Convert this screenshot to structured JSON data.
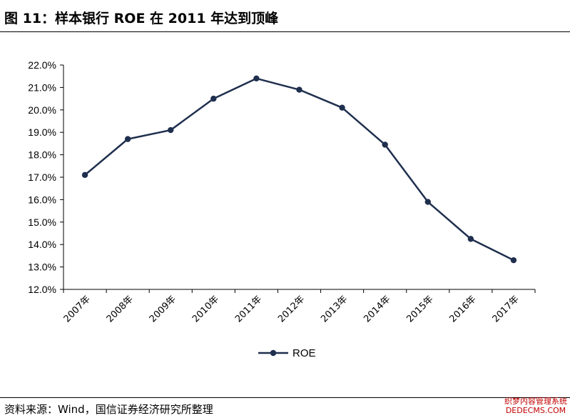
{
  "title": "图 11：样本银行 ROE 在 2011 年达到顶峰",
  "source": "资料来源：Wind，国信证券经济研究所整理",
  "watermark": [
    "织梦内容管理系统",
    "DEDECMS.COM"
  ],
  "colors": {
    "series": "#1f2f4e",
    "axis": "#000000"
  },
  "chart_data": {
    "type": "line",
    "categories": [
      "2007年",
      "2008年",
      "2009年",
      "2010年",
      "2011年",
      "2012年",
      "2013年",
      "2014年",
      "2015年",
      "2016年",
      "2017年"
    ],
    "series": [
      {
        "name": "ROE",
        "values": [
          17.1,
          18.7,
          19.1,
          20.5,
          21.4,
          20.9,
          20.1,
          18.45,
          15.9,
          14.25,
          13.3
        ]
      }
    ],
    "ylim": [
      12.0,
      22.0
    ],
    "yticks": [
      12.0,
      13.0,
      14.0,
      15.0,
      16.0,
      17.0,
      18.0,
      19.0,
      20.0,
      21.0,
      22.0
    ],
    "y_tick_format": "%",
    "grid": false,
    "legend": "bottom-center",
    "marker": "circle"
  }
}
